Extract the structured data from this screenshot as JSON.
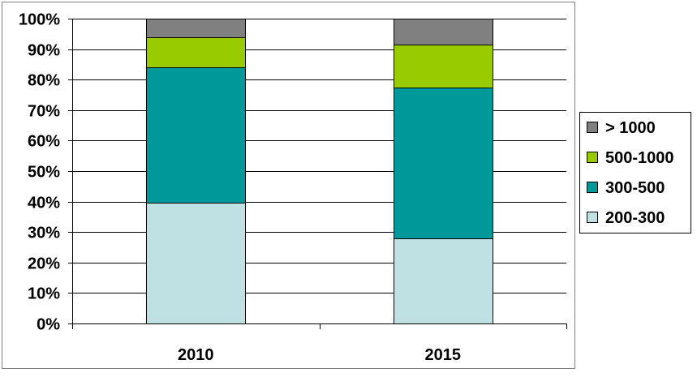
{
  "chart_data": {
    "type": "bar",
    "stacked": true,
    "percent": true,
    "categories": [
      "2010",
      "2015"
    ],
    "series": [
      {
        "name": "200-300",
        "color": "#c0e1e4",
        "values": [
          39.5,
          28
        ]
      },
      {
        "name": "300-500",
        "color": "#009999",
        "values": [
          44.5,
          49.5
        ]
      },
      {
        "name": "500-1000",
        "color": "#99cc00",
        "values": [
          10,
          14
        ]
      },
      {
        "name": "> 1000",
        "color": "#808080",
        "values": [
          6,
          8.5
        ]
      }
    ],
    "ylim": [
      0,
      100
    ],
    "yticks": [
      "0%",
      "10%",
      "20%",
      "30%",
      "40%",
      "50%",
      "60%",
      "70%",
      "80%",
      "90%",
      "100%"
    ],
    "grid": true,
    "legend_position": "right",
    "legend_order": [
      "> 1000",
      "500-1000",
      "300-500",
      "200-300"
    ]
  }
}
